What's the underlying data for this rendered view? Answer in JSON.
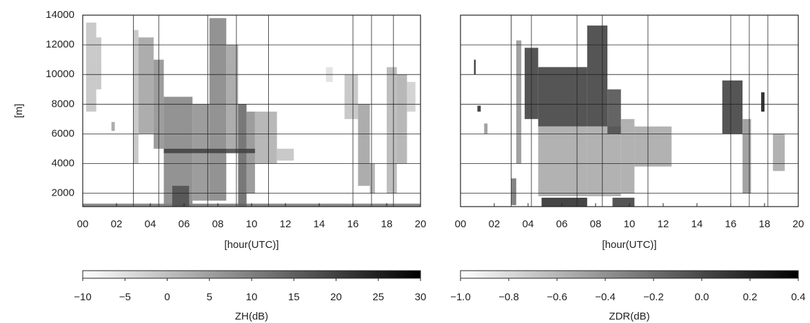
{
  "chart_data": [
    {
      "type": "heatmap",
      "xlabel": "[hour(UTC)]",
      "ylabel": "[m]",
      "ytick_labels": true,
      "xlim": [
        0,
        20
      ],
      "ylim": [
        1100,
        14000
      ],
      "xticks": [
        {
          "value": 0,
          "label": "00"
        },
        {
          "value": 2,
          "label": "02"
        },
        {
          "value": 4,
          "label": "04"
        },
        {
          "value": 6,
          "label": "06"
        },
        {
          "value": 8,
          "label": "08"
        },
        10,
        12,
        14,
        16,
        18,
        20
      ],
      "yticks": [
        2000,
        4000,
        6000,
        8000,
        10000,
        12000,
        14000
      ],
      "xgrid": [
        3.0,
        4.5,
        7.4,
        9.1,
        11.0,
        16.0,
        17.1,
        18.4
      ],
      "colors": [
        "#ffffff",
        "#000000"
      ],
      "colorbar_label": "ZH(dB)",
      "clim": [
        -10,
        30
      ],
      "cticks": [
        {
          "value": -10,
          "label": "−10"
        },
        {
          "value": -5,
          "label": "−5"
        },
        0,
        5,
        10,
        15,
        20,
        25,
        30
      ],
      "cells": [
        {
          "x": [
            0,
            20
          ],
          "y": [
            1100,
            1300
          ],
          "value": 12
        },
        {
          "x": [
            0.2,
            0.8
          ],
          "y": [
            7500,
            13500
          ],
          "value": 0
        },
        {
          "x": [
            0.8,
            1.1
          ],
          "y": [
            9000,
            12500
          ],
          "value": 0
        },
        {
          "x": [
            1.7,
            1.9
          ],
          "y": [
            6200,
            6800
          ],
          "value": 5
        },
        {
          "x": [
            3.0,
            3.3
          ],
          "y": [
            4000,
            13000
          ],
          "value": 0
        },
        {
          "x": [
            3.3,
            4.2
          ],
          "y": [
            6000,
            12500
          ],
          "value": 5
        },
        {
          "x": [
            4.2,
            4.8
          ],
          "y": [
            5000,
            11000
          ],
          "value": 8
        },
        {
          "x": [
            4.8,
            6.5
          ],
          "y": [
            1100,
            8500
          ],
          "value": 10
        },
        {
          "x": [
            5.3,
            6.3
          ],
          "y": [
            1100,
            2500
          ],
          "value": 18
        },
        {
          "x": [
            6.5,
            7.5
          ],
          "y": [
            1500,
            8000
          ],
          "value": 8
        },
        {
          "x": [
            7.5,
            8.5
          ],
          "y": [
            1500,
            13800
          ],
          "value": 10
        },
        {
          "x": [
            8.5,
            9.2
          ],
          "y": [
            5000,
            12000
          ],
          "value": 5
        },
        {
          "x": [
            9.2,
            9.7
          ],
          "y": [
            1100,
            8000
          ],
          "value": 15
        },
        {
          "x": [
            9.7,
            10.2
          ],
          "y": [
            2000,
            7500
          ],
          "value": 8
        },
        {
          "x": [
            10.2,
            11.5
          ],
          "y": [
            4000,
            7500
          ],
          "value": 3
        },
        {
          "x": [
            11.5,
            12.5
          ],
          "y": [
            4200,
            5000
          ],
          "value": 0
        },
        {
          "x": [
            4.8,
            10.2
          ],
          "y": [
            4700,
            5000
          ],
          "value": 20
        },
        {
          "x": [
            14.4,
            14.8
          ],
          "y": [
            9500,
            10500
          ],
          "value": -5
        },
        {
          "x": [
            15.5,
            16.3
          ],
          "y": [
            7000,
            10000
          ],
          "value": 0
        },
        {
          "x": [
            16.3,
            17.0
          ],
          "y": [
            2500,
            8000
          ],
          "value": 5
        },
        {
          "x": [
            17.0,
            17.3
          ],
          "y": [
            2000,
            4000
          ],
          "value": 3
        },
        {
          "x": [
            18.0,
            18.6
          ],
          "y": [
            2000,
            10500
          ],
          "value": 2
        },
        {
          "x": [
            18.6,
            19.2
          ],
          "y": [
            4000,
            10000
          ],
          "value": 3
        },
        {
          "x": [
            19.2,
            19.7
          ],
          "y": [
            7500,
            9500
          ],
          "value": -2
        }
      ]
    },
    {
      "type": "heatmap",
      "xlabel": "[hour(UTC)]",
      "ytick_labels": false,
      "xlim": [
        0,
        20
      ],
      "ylim": [
        1100,
        14000
      ],
      "xticks": [
        {
          "value": 0,
          "label": "00"
        },
        {
          "value": 2,
          "label": "02"
        },
        {
          "value": 4,
          "label": "04"
        },
        {
          "value": 6,
          "label": "06"
        },
        {
          "value": 8,
          "label": "08"
        },
        10,
        12,
        14,
        16,
        18,
        20
      ],
      "yticks": [
        2000,
        4000,
        6000,
        8000,
        10000,
        12000,
        14000
      ],
      "xgrid": [
        3.0,
        4.2,
        6.9,
        8.4,
        11.1,
        16.0,
        17.1,
        18.2
      ],
      "colors": [
        "#ffffff",
        "#000000"
      ],
      "colorbar_label": "ZDR(dB)",
      "clim": [
        -1.0,
        0.4
      ],
      "cticks": [
        {
          "value": -1.0,
          "label": "−1.0"
        },
        {
          "value": -0.8,
          "label": "−0.8"
        },
        {
          "value": -0.6,
          "label": "−0.6"
        },
        {
          "value": -0.4,
          "label": "−0.4"
        },
        {
          "value": -0.2,
          "label": "−0.2"
        },
        {
          "value": 0,
          "label": "0.0"
        },
        0.2,
        0.4
      ],
      "cells": [
        {
          "x": [
            0.8,
            0.9
          ],
          "y": [
            10000,
            11000
          ],
          "value": 0.2
        },
        {
          "x": [
            1.0,
            1.2
          ],
          "y": [
            7500,
            7900
          ],
          "value": 0.2
        },
        {
          "x": [
            1.4,
            1.6
          ],
          "y": [
            6000,
            6700
          ],
          "value": -0.4
        },
        {
          "x": [
            3.0,
            3.3
          ],
          "y": [
            1200,
            3000
          ],
          "value": -0.2
        },
        {
          "x": [
            3.3,
            3.6
          ],
          "y": [
            4000,
            12300
          ],
          "value": -0.4
        },
        {
          "x": [
            3.8,
            4.6
          ],
          "y": [
            7000,
            11800
          ],
          "value": 0.1
        },
        {
          "x": [
            4.6,
            7.5
          ],
          "y": [
            6500,
            10500
          ],
          "value": 0.1
        },
        {
          "x": [
            4.6,
            7.5
          ],
          "y": [
            1800,
            6500
          ],
          "value": -0.5
        },
        {
          "x": [
            4.8,
            7.5
          ],
          "y": [
            1100,
            1700
          ],
          "value": 0.2
        },
        {
          "x": [
            7.5,
            8.7
          ],
          "y": [
            6500,
            13300
          ],
          "value": 0.1
        },
        {
          "x": [
            7.5,
            9.5
          ],
          "y": [
            1800,
            6500
          ],
          "value": -0.5
        },
        {
          "x": [
            8.7,
            9.5
          ],
          "y": [
            6000,
            9000
          ],
          "value": 0.0
        },
        {
          "x": [
            9.5,
            10.3
          ],
          "y": [
            2000,
            7000
          ],
          "value": -0.5
        },
        {
          "x": [
            9.0,
            10.3
          ],
          "y": [
            1100,
            1700
          ],
          "value": 0.1
        },
        {
          "x": [
            10.3,
            12.5
          ],
          "y": [
            3800,
            6500
          ],
          "value": -0.5
        },
        {
          "x": [
            15.5,
            16.7
          ],
          "y": [
            6000,
            9600
          ],
          "value": 0.1
        },
        {
          "x": [
            16.7,
            17.2
          ],
          "y": [
            2000,
            7000
          ],
          "value": -0.4
        },
        {
          "x": [
            17.8,
            18.0
          ],
          "y": [
            7500,
            8800
          ],
          "value": 0.3
        },
        {
          "x": [
            18.5,
            19.2
          ],
          "y": [
            3500,
            6000
          ],
          "value": -0.5
        }
      ]
    }
  ]
}
